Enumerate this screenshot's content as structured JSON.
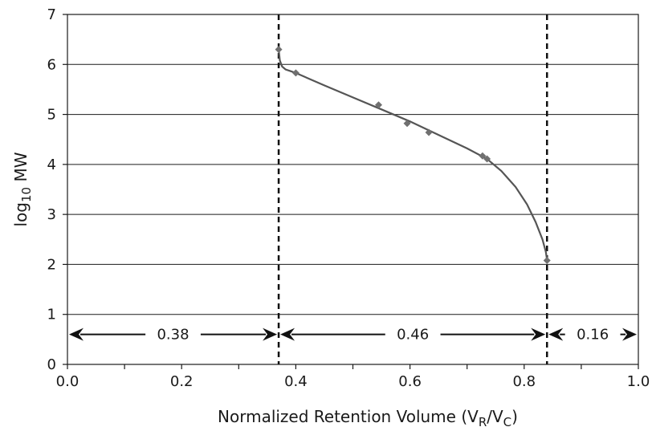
{
  "chart_data": {
    "type": "scatter",
    "title": "",
    "xlabel": {
      "prefix": "Normalized Retention Volume (V",
      "sub1": "R",
      "mid": "/V",
      "sub2": "C",
      "suffix": ")"
    },
    "ylabel": {
      "prefix": "log",
      "sub": "10",
      "suffix": " MW"
    },
    "xlim": [
      0.0,
      1.0
    ],
    "ylim": [
      0,
      7
    ],
    "xticks": [
      0.0,
      0.2,
      0.4,
      0.6,
      0.8,
      1.0
    ],
    "xtick_labels": [
      "0.0",
      "0.2",
      "0.4",
      "0.6",
      "0.8",
      "1.0"
    ],
    "yticks": [
      0,
      1,
      2,
      3,
      4,
      5,
      6,
      7
    ],
    "ytick_labels": [
      "0",
      "1",
      "2",
      "3",
      "4",
      "5",
      "6",
      "7"
    ],
    "grid": "horizontal",
    "series": [
      {
        "kind": "points",
        "marker": "diamond",
        "color": "#707070",
        "x": [
          0.37,
          0.4,
          0.545,
          0.595,
          0.633,
          0.727,
          0.735,
          0.84
        ],
        "y": [
          6.3,
          5.83,
          5.19,
          4.82,
          4.64,
          4.17,
          4.11,
          2.08
        ]
      },
      {
        "kind": "fit-curve",
        "color": "#555555",
        "x": [
          0.37,
          0.372,
          0.376,
          0.382,
          0.39,
          0.4,
          0.45,
          0.5,
          0.55,
          0.6,
          0.65,
          0.7,
          0.735,
          0.76,
          0.785,
          0.805,
          0.82,
          0.832,
          0.838,
          0.84
        ],
        "y": [
          6.3,
          6.08,
          5.96,
          5.9,
          5.87,
          5.83,
          5.58,
          5.34,
          5.1,
          4.86,
          4.59,
          4.32,
          4.11,
          3.87,
          3.55,
          3.2,
          2.85,
          2.5,
          2.25,
          2.1
        ]
      }
    ],
    "dividers": [
      0.37,
      0.84
    ],
    "regions": [
      {
        "from": 0.0,
        "to": 0.37,
        "label": "0.38",
        "y": 0.6
      },
      {
        "from": 0.37,
        "to": 0.84,
        "label": "0.46",
        "y": 0.6
      },
      {
        "from": 0.84,
        "to": 1.0,
        "label": "0.16",
        "y": 0.6
      }
    ]
  }
}
